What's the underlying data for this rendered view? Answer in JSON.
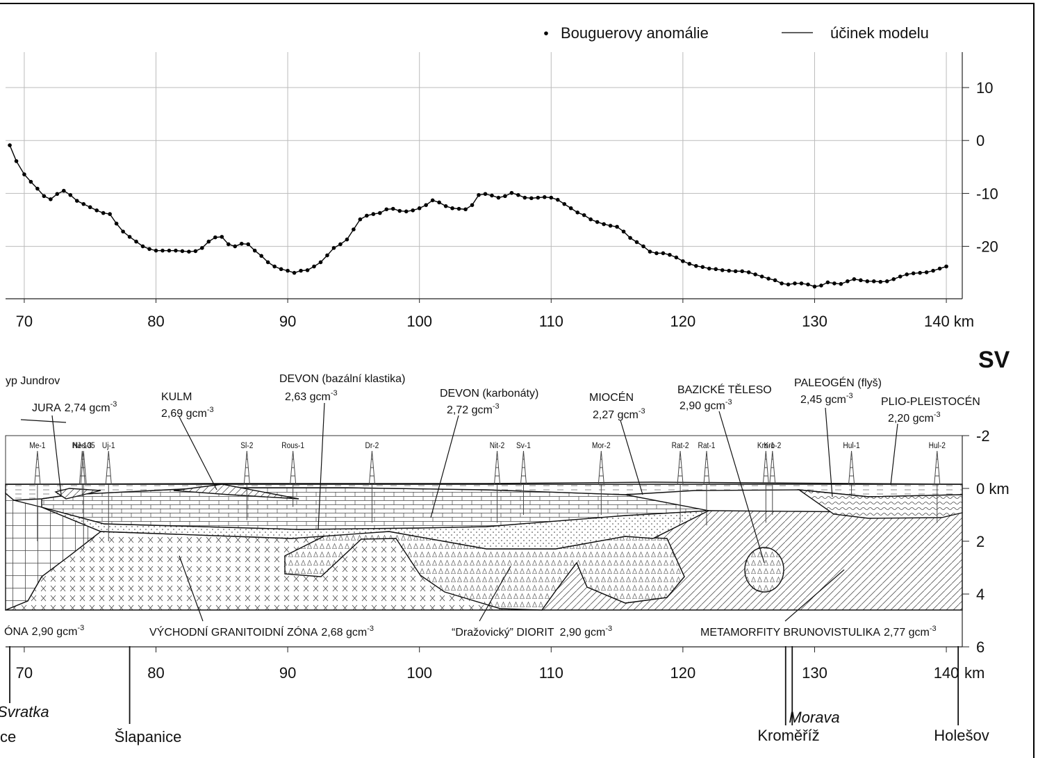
{
  "chart_data": [
    {
      "type": "line",
      "legend": "top-right",
      "grid": true,
      "xlim": [
        68.58,
        141.21
      ],
      "ylim": [
        -29.9,
        16.7
      ],
      "xticks": [
        70,
        80,
        90,
        100,
        110,
        120,
        130,
        {
          "value": 140,
          "label": "140 km"
        }
      ],
      "yticks": [
        -20,
        -10,
        0,
        10
      ],
      "x": [
        68.9,
        69.4,
        70,
        70.5,
        71,
        71.5,
        72,
        72.5,
        73,
        73.5,
        74,
        74.5,
        75,
        75.5,
        76,
        76.5,
        77,
        77.5,
        78,
        78.5,
        79,
        79.5,
        80,
        80.5,
        81,
        81.5,
        82,
        82.5,
        83,
        83.5,
        84,
        84.5,
        85,
        85.5,
        86,
        86.5,
        87,
        87.5,
        88,
        88.5,
        89,
        89.5,
        90,
        90.5,
        91,
        91.5,
        92,
        92.5,
        93,
        93.5,
        94,
        94.5,
        95,
        95.5,
        96,
        96.5,
        97,
        97.5,
        98,
        98.5,
        99,
        99.5,
        100,
        100.5,
        101,
        101.5,
        102,
        102.5,
        103,
        103.5,
        104,
        104.5,
        105,
        105.5,
        106,
        106.5,
        107,
        107.5,
        108,
        108.5,
        109,
        109.5,
        110,
        110.5,
        111,
        111.5,
        112,
        112.5,
        113,
        113.5,
        114,
        114.5,
        115,
        115.5,
        116,
        116.5,
        117,
        117.5,
        118,
        118.5,
        119,
        119.5,
        120,
        120.5,
        121,
        121.5,
        122,
        122.5,
        123,
        123.5,
        124,
        124.5,
        125,
        125.5,
        126,
        126.5,
        127,
        127.5,
        128,
        128.5,
        129,
        129.5,
        130,
        130.5,
        131,
        131.5,
        132,
        132.5,
        133,
        133.5,
        134,
        134.5,
        135,
        135.5,
        136,
        136.5,
        137,
        137.5,
        138,
        138.5,
        139,
        139.5,
        140
      ],
      "series": [
        {
          "name": "Bouguerovy anomálie",
          "color": "#000000",
          "marker": "dot",
          "values": [
            -0.9,
            -3.9,
            -6.4,
            -7.8,
            -9.1,
            -10.5,
            -11.1,
            -10.1,
            -9.5,
            -10.3,
            -11.4,
            -12.0,
            -12.6,
            -13.2,
            -13.7,
            -13.9,
            -15.7,
            -17.2,
            -18.2,
            -19.1,
            -20,
            -20.5,
            -20.8,
            -20.8,
            -20.8,
            -20.8,
            -20.9,
            -21,
            -20.9,
            -20.3,
            -19.1,
            -18.3,
            -18.2,
            -19.6,
            -20,
            -19.5,
            -19.6,
            -20.8,
            -21.8,
            -23,
            -23.8,
            -24.3,
            -24.6,
            -25,
            -24.6,
            -24.5,
            -23.8,
            -23,
            -21.7,
            -20.3,
            -19.6,
            -18.7,
            -16.8,
            -14.9,
            -14.2,
            -13.9,
            -13.7,
            -13,
            -12.9,
            -13.3,
            -13.4,
            -13.2,
            -12.8,
            -12.2,
            -11.3,
            -11.7,
            -12.4,
            -12.8,
            -12.9,
            -13,
            -12.2,
            -10.3,
            -10.1,
            -10.4,
            -10.8,
            -10.5,
            -9.9,
            -10.3,
            -10.8,
            -10.9,
            -10.8,
            -10.7,
            -10.8,
            -11.2,
            -12,
            -12.8,
            -13.6,
            -14.1,
            -14.9,
            -15.4,
            -15.8,
            -16.1,
            -16.3,
            -17.2,
            -18.4,
            -19.2,
            -20,
            -21,
            -21.3,
            -21.3,
            -21.6,
            -22.1,
            -22.8,
            -23.3,
            -23.7,
            -23.9,
            -24.2,
            -24.3,
            -24.5,
            -24.6,
            -24.7,
            -24.7,
            -24.9,
            -25.3,
            -25.7,
            -26.1,
            -26.4,
            -27,
            -27.2,
            -27,
            -27,
            -27.2,
            -27.6,
            -27.4,
            -26.8,
            -27,
            -27.1,
            -26.6,
            -26.2,
            -26.4,
            -26.6,
            -26.6,
            -26.7,
            -26.6,
            -26.2,
            -25.7,
            -25.3,
            -25.1,
            -25,
            -24.9,
            -24.6,
            -24.2,
            -23.8
          ]
        },
        {
          "name": "účinek modelu",
          "color": "#000000",
          "marker": "line",
          "values": [
            -0.9,
            -3.9,
            -6.4,
            -7.8,
            -9.1,
            -10.5,
            -11.1,
            -10.1,
            -9.5,
            -10.3,
            -11.4,
            -12.0,
            -12.6,
            -13.2,
            -13.7,
            -13.9,
            -15.7,
            -17.2,
            -18.2,
            -19.1,
            -20,
            -20.5,
            -20.8,
            -20.8,
            -20.8,
            -20.8,
            -20.9,
            -21,
            -20.9,
            -20.3,
            -19.1,
            -18.3,
            -18.2,
            -19.6,
            -20,
            -19.5,
            -19.6,
            -20.8,
            -21.8,
            -23,
            -23.8,
            -24.3,
            -24.6,
            -25,
            -24.6,
            -24.5,
            -23.8,
            -23,
            -21.7,
            -20.3,
            -19.6,
            -18.7,
            -16.8,
            -14.9,
            -14.2,
            -13.9,
            -13.7,
            -13,
            -12.9,
            -13.3,
            -13.4,
            -13.2,
            -12.8,
            -12.2,
            -11.3,
            -11.7,
            -12.4,
            -12.8,
            -12.9,
            -13,
            -12.2,
            -10.3,
            -10.1,
            -10.4,
            -10.8,
            -10.5,
            -9.9,
            -10.3,
            -10.8,
            -10.9,
            -10.8,
            -10.7,
            -10.8,
            -11.2,
            -12,
            -12.8,
            -13.6,
            -14.1,
            -14.9,
            -15.4,
            -15.8,
            -16.1,
            -16.3,
            -17.2,
            -18.4,
            -19.2,
            -20,
            -21,
            -21.3,
            -21.3,
            -21.6,
            -22.1,
            -22.8,
            -23.3,
            -23.7,
            -23.9,
            -24.2,
            -24.3,
            -24.5,
            -24.6,
            -24.7,
            -24.7,
            -24.9,
            -25.3,
            -25.7,
            -26.1,
            -26.4,
            -27,
            -27.2,
            -27,
            -27,
            -27.2,
            -27.6,
            -27.4,
            -26.8,
            -27,
            -27.1,
            -26.6,
            -26.2,
            -26.4,
            -26.6,
            -26.6,
            -26.7,
            -26.6,
            -26.2,
            -25.7,
            -25.3,
            -25.1,
            -25,
            -24.9,
            -24.6,
            -24.2,
            -23.8
          ]
        }
      ]
    },
    {
      "type": "section",
      "direction": "SV",
      "xlim": [
        68.58,
        141.21
      ],
      "ylim": [
        -2,
        6
      ],
      "xticks": [
        70,
        80,
        90,
        100,
        110,
        120,
        130,
        140
      ],
      "xunit": "km",
      "yticks": [
        -2,
        {
          "value": 0,
          "label": "0 km"
        },
        2,
        4,
        6
      ],
      "wells": [
        {
          "name": "Me-1",
          "km": 71.0,
          "depth": 2.0
        },
        {
          "name": "Nes-3",
          "km": 74.4,
          "depth": 0.3
        },
        {
          "name": "HJ-105",
          "km": 74.5,
          "depth": 2.3
        },
        {
          "name": "Uj-1",
          "km": 76.4,
          "depth": 2.0
        },
        {
          "name": "Sl-2",
          "km": 86.9,
          "depth": 1.2
        },
        {
          "name": "Rous-1",
          "km": 90.4,
          "depth": 0.7
        },
        {
          "name": "Dr-2",
          "km": 96.4,
          "depth": 1.3
        },
        {
          "name": "Nit-2",
          "km": 105.9,
          "depth": 1.3
        },
        {
          "name": "Sv-1",
          "km": 107.9,
          "depth": 1.0
        },
        {
          "name": "Mor-2",
          "km": 113.8,
          "depth": 1.0
        },
        {
          "name": "Rat-2",
          "km": 119.8,
          "depth": 1.3
        },
        {
          "name": "Rat-1",
          "km": 121.8,
          "depth": 1.4
        },
        {
          "name": "Kro-1",
          "km": 126.3,
          "depth": 1.3
        },
        {
          "name": "Kro-2",
          "km": 126.8,
          "depth": 1.0
        },
        {
          "name": "Hul-1",
          "km": 132.8,
          "depth": 0.3
        },
        {
          "name": "Hul-2",
          "km": 139.3,
          "depth": 1.3
        }
      ],
      "formations": [
        {
          "name": "yp Jundrov"
        },
        {
          "name": "JURA",
          "density": "2,74 gcm",
          "sup": "-3"
        },
        {
          "name": "KULM",
          "density": "2,69 gcm",
          "sup": "-3"
        },
        {
          "name": "DEVON (bazální klastika)",
          "density": "2,63 gcm",
          "sup": "-3"
        },
        {
          "name": "DEVON (karbonáty)",
          "density": "2,72 gcm",
          "sup": "-3"
        },
        {
          "name": "MIOCÉN",
          "density": "2,27 gcm",
          "sup": "-3"
        },
        {
          "name": "BAZICKÉ TĚLESO",
          "density": "2,90 gcm",
          "sup": "-3"
        },
        {
          "name": "PALEOGÉN (flyš)",
          "density": "2,45 gcm",
          "sup": "-3"
        },
        {
          "name": "PLIO-PLEISTOCÉN",
          "density": "2,20 gcm",
          "sup": "-3"
        },
        {
          "name": "ÓNA",
          "density": "2,90 gcm",
          "sup": "-3"
        },
        {
          "name": "VÝCHODNÍ GRANITOIDNÍ ZÓNA",
          "density": "2,68 gcm",
          "sup": "-3"
        },
        {
          "name": "“Dražovický” DIORIT",
          "density": "2,90 gcm",
          "sup": "-3"
        },
        {
          "name": "METAMORFITY BRUNOVISTULIKA",
          "density": "2,77 gcm",
          "sup": "-3"
        }
      ],
      "places": [
        {
          "name": "Svratka",
          "km": 68.9
        },
        {
          "name": "ce"
        },
        {
          "name": "Šlapanice",
          "km": 78.0
        },
        {
          "name": "Morava",
          "km": 128.3
        },
        {
          "name": "Kroměříž",
          "km": 127.8
        },
        {
          "name": "Holešov",
          "km": 140.9
        }
      ]
    }
  ]
}
